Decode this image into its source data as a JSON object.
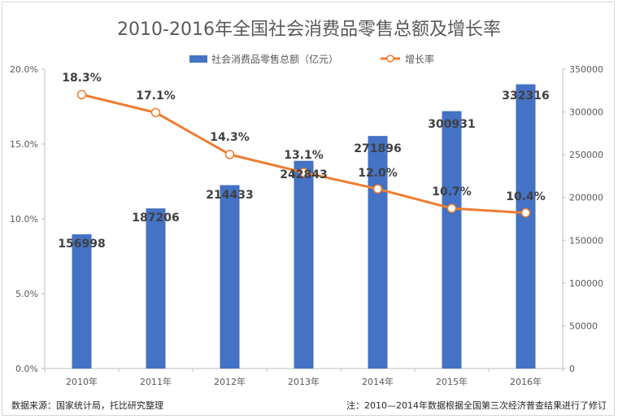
{
  "chart_data": {
    "type": "bar",
    "title": "2010-2016年全国社会消费品零售总额及增长率",
    "categories": [
      "2010年",
      "2011年",
      "2012年",
      "2013年",
      "2014年",
      "2015年",
      "2016年"
    ],
    "series": [
      {
        "name": "社会消费品零售总额（亿元）",
        "type": "bar",
        "axis": "right",
        "color": "#4472c4",
        "values": [
          156998,
          187206,
          214433,
          242843,
          271896,
          300931,
          332316
        ]
      },
      {
        "name": "增长率",
        "type": "line",
        "axis": "left",
        "color": "#ed7d31",
        "values": [
          18.3,
          17.1,
          14.3,
          13.1,
          12.0,
          10.7,
          10.4
        ],
        "value_labels": [
          "18.3%",
          "17.1%",
          "14.3%",
          "13.1%",
          "12.0%",
          "10.7%",
          "10.4%"
        ]
      }
    ],
    "left_axis": {
      "ylim": [
        0,
        20
      ],
      "ticks": [
        "0.0%",
        "5.0%",
        "10.0%",
        "15.0%",
        "20.0%"
      ]
    },
    "right_axis": {
      "ylim": [
        0,
        350000
      ],
      "ticks": [
        "0",
        "50000",
        "100000",
        "150000",
        "200000",
        "250000",
        "300000",
        "350000"
      ]
    },
    "legend_position": "top",
    "grid": false
  },
  "footer": {
    "source": "数据来源：国家统计局，托比研究整理",
    "note": "注：2010—2014年数据根据全国第三次经济普查结果进行了修订"
  }
}
